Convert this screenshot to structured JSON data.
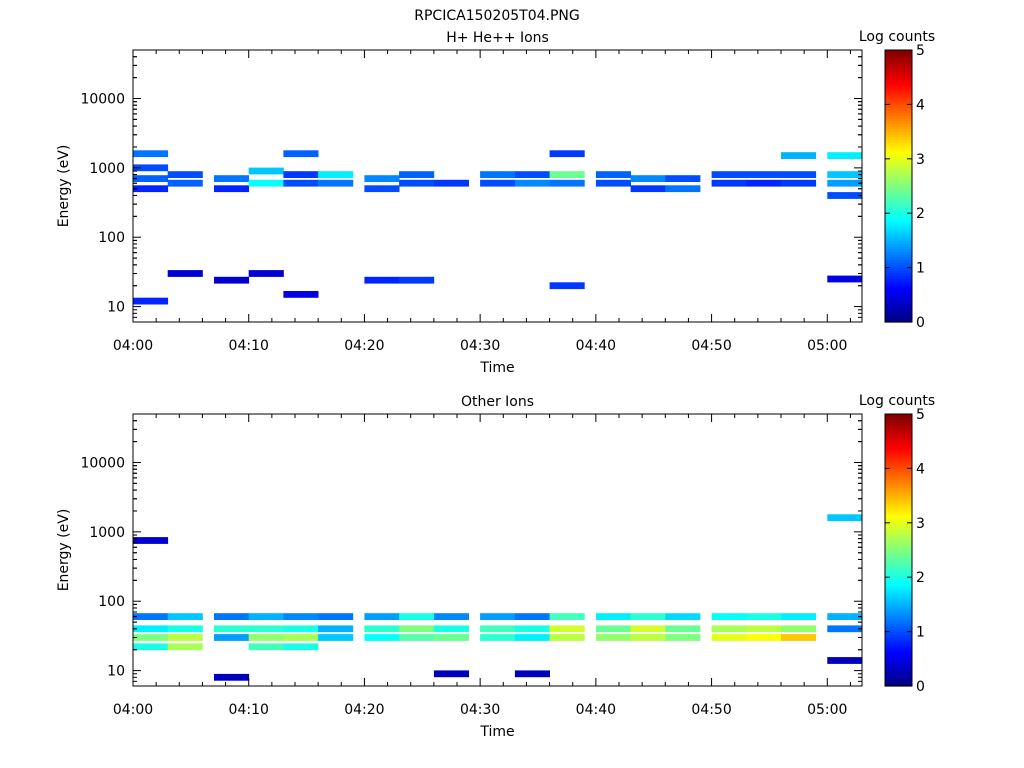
{
  "figure_title": "RPCICA150205T04.PNG",
  "colors": {
    "colormap": [
      "#00007f",
      "#0000ff",
      "#007fff",
      "#00ffff",
      "#7fff7f",
      "#ffff00",
      "#ff7f00",
      "#ff0000",
      "#7f0000"
    ],
    "axes": "#000000",
    "background": "#ffffff"
  },
  "chart_data": [
    {
      "type": "heatmap",
      "title": "H+ He++ Ions",
      "xlabel": "Time",
      "ylabel": "Energy (eV)",
      "yscale": "log",
      "xlim": [
        "04:00",
        "05:03"
      ],
      "ylim": [
        6,
        50000
      ],
      "x_ticks": [
        "04:00",
        "04:10",
        "04:20",
        "04:30",
        "04:40",
        "04:50",
        "05:00"
      ],
      "y_ticks": [
        "10",
        "100",
        "1000",
        "10000"
      ],
      "time_bins": [
        "04:00",
        "04:03",
        "04:07",
        "04:10",
        "04:13",
        "04:16",
        "04:20",
        "04:23",
        "04:26",
        "04:30",
        "04:33",
        "04:36",
        "04:40",
        "04:43",
        "04:46",
        "04:50",
        "04:53",
        "04:56",
        "05:00"
      ],
      "colorbar": {
        "label": "Log counts",
        "min": 0,
        "max": 5,
        "ticks": [
          "0",
          "1",
          "2",
          "3",
          "4",
          "5"
        ]
      },
      "cells": [
        {
          "t": 0,
          "e": 1000,
          "v": 1.0
        },
        {
          "t": 0,
          "e": 700,
          "v": 1.1
        },
        {
          "t": 0,
          "e": 500,
          "v": 0.8
        },
        {
          "t": 0,
          "e": 12,
          "v": 0.8
        },
        {
          "t": 0,
          "e": 1600,
          "v": 1.2
        },
        {
          "t": 1,
          "e": 800,
          "v": 1.0
        },
        {
          "t": 1,
          "e": 600,
          "v": 1.1
        },
        {
          "t": 1,
          "e": 30,
          "v": 0.4
        },
        {
          "t": 2,
          "e": 700,
          "v": 1.2
        },
        {
          "t": 2,
          "e": 500,
          "v": 0.8
        },
        {
          "t": 2,
          "e": 24,
          "v": 0.4
        },
        {
          "t": 3,
          "e": 900,
          "v": 1.6
        },
        {
          "t": 3,
          "e": 600,
          "v": 1.9
        },
        {
          "t": 3,
          "e": 30,
          "v": 0.4
        },
        {
          "t": 4,
          "e": 800,
          "v": 0.9
        },
        {
          "t": 4,
          "e": 600,
          "v": 1.0
        },
        {
          "t": 4,
          "e": 1600,
          "v": 1.1
        },
        {
          "t": 4,
          "e": 15,
          "v": 0.5
        },
        {
          "t": 5,
          "e": 800,
          "v": 1.8
        },
        {
          "t": 5,
          "e": 600,
          "v": 1.2
        },
        {
          "t": 6,
          "e": 700,
          "v": 1.3
        },
        {
          "t": 6,
          "e": 500,
          "v": 1.0
        },
        {
          "t": 6,
          "e": 24,
          "v": 0.8
        },
        {
          "t": 7,
          "e": 800,
          "v": 1.1
        },
        {
          "t": 7,
          "e": 600,
          "v": 1.0
        },
        {
          "t": 7,
          "e": 24,
          "v": 0.9
        },
        {
          "t": 8,
          "e": 600,
          "v": 0.9
        },
        {
          "t": 9,
          "e": 800,
          "v": 1.2
        },
        {
          "t": 9,
          "e": 600,
          "v": 1.0
        },
        {
          "t": 10,
          "e": 800,
          "v": 1.0
        },
        {
          "t": 10,
          "e": 600,
          "v": 1.3
        },
        {
          "t": 11,
          "e": 800,
          "v": 2.4
        },
        {
          "t": 11,
          "e": 600,
          "v": 1.2
        },
        {
          "t": 11,
          "e": 20,
          "v": 0.9
        },
        {
          "t": 11,
          "e": 1600,
          "v": 0.9
        },
        {
          "t": 12,
          "e": 800,
          "v": 1.1
        },
        {
          "t": 12,
          "e": 600,
          "v": 1.0
        },
        {
          "t": 13,
          "e": 700,
          "v": 1.3
        },
        {
          "t": 13,
          "e": 500,
          "v": 0.9
        },
        {
          "t": 14,
          "e": 700,
          "v": 1.0
        },
        {
          "t": 14,
          "e": 500,
          "v": 1.2
        },
        {
          "t": 15,
          "e": 800,
          "v": 1.0
        },
        {
          "t": 15,
          "e": 600,
          "v": 0.9
        },
        {
          "t": 16,
          "e": 800,
          "v": 1.0
        },
        {
          "t": 16,
          "e": 600,
          "v": 0.8
        },
        {
          "t": 17,
          "e": 1500,
          "v": 1.5
        },
        {
          "t": 17,
          "e": 800,
          "v": 1.0
        },
        {
          "t": 17,
          "e": 600,
          "v": 0.9
        },
        {
          "t": 18,
          "e": 1500,
          "v": 1.8
        },
        {
          "t": 18,
          "e": 800,
          "v": 1.6
        },
        {
          "t": 18,
          "e": 600,
          "v": 1.4
        },
        {
          "t": 18,
          "e": 400,
          "v": 1.0
        },
        {
          "t": 18,
          "e": 25,
          "v": 0.5
        }
      ]
    },
    {
      "type": "heatmap",
      "title": "Other Ions",
      "xlabel": "Time",
      "ylabel": "Energy (eV)",
      "yscale": "log",
      "xlim": [
        "04:00",
        "05:03"
      ],
      "ylim": [
        6,
        50000
      ],
      "x_ticks": [
        "04:00",
        "04:10",
        "04:20",
        "04:30",
        "04:40",
        "04:50",
        "05:00"
      ],
      "y_ticks": [
        "10",
        "100",
        "1000",
        "10000"
      ],
      "time_bins": [
        "04:00",
        "04:03",
        "04:07",
        "04:10",
        "04:13",
        "04:16",
        "04:20",
        "04:23",
        "04:26",
        "04:30",
        "04:33",
        "04:36",
        "04:40",
        "04:43",
        "04:46",
        "04:50",
        "04:53",
        "04:56",
        "05:00"
      ],
      "colorbar": {
        "label": "Log counts",
        "min": 0,
        "max": 5,
        "ticks": [
          "0",
          "1",
          "2",
          "3",
          "4",
          "5"
        ]
      },
      "cells": [
        {
          "t": 0,
          "e": 750,
          "v": 0.4
        },
        {
          "t": 0,
          "e": 60,
          "v": 1.2
        },
        {
          "t": 0,
          "e": 40,
          "v": 1.8
        },
        {
          "t": 0,
          "e": 30,
          "v": 2.5
        },
        {
          "t": 0,
          "e": 22,
          "v": 2.0
        },
        {
          "t": 1,
          "e": 60,
          "v": 1.6
        },
        {
          "t": 1,
          "e": 40,
          "v": 2.0
        },
        {
          "t": 1,
          "e": 30,
          "v": 2.8
        },
        {
          "t": 1,
          "e": 22,
          "v": 2.7
        },
        {
          "t": 2,
          "e": 60,
          "v": 1.2
        },
        {
          "t": 2,
          "e": 40,
          "v": 2.1
        },
        {
          "t": 2,
          "e": 30,
          "v": 1.4
        },
        {
          "t": 2,
          "e": 8,
          "v": 0.3
        },
        {
          "t": 3,
          "e": 60,
          "v": 1.5
        },
        {
          "t": 3,
          "e": 40,
          "v": 2.1
        },
        {
          "t": 3,
          "e": 30,
          "v": 2.6
        },
        {
          "t": 3,
          "e": 22,
          "v": 2.2
        },
        {
          "t": 4,
          "e": 60,
          "v": 1.3
        },
        {
          "t": 4,
          "e": 40,
          "v": 2.0
        },
        {
          "t": 4,
          "e": 30,
          "v": 2.7
        },
        {
          "t": 4,
          "e": 22,
          "v": 2.0
        },
        {
          "t": 5,
          "e": 60,
          "v": 1.2
        },
        {
          "t": 5,
          "e": 40,
          "v": 1.5
        },
        {
          "t": 5,
          "e": 30,
          "v": 1.6
        },
        {
          "t": 6,
          "e": 60,
          "v": 1.4
        },
        {
          "t": 6,
          "e": 40,
          "v": 2.1
        },
        {
          "t": 6,
          "e": 30,
          "v": 1.9
        },
        {
          "t": 7,
          "e": 60,
          "v": 2.0
        },
        {
          "t": 7,
          "e": 40,
          "v": 2.5
        },
        {
          "t": 7,
          "e": 30,
          "v": 2.3
        },
        {
          "t": 8,
          "e": 60,
          "v": 1.3
        },
        {
          "t": 8,
          "e": 40,
          "v": 2.0
        },
        {
          "t": 8,
          "e": 30,
          "v": 2.4
        },
        {
          "t": 8,
          "e": 9,
          "v": 0.3
        },
        {
          "t": 9,
          "e": 60,
          "v": 1.4
        },
        {
          "t": 9,
          "e": 40,
          "v": 2.2
        },
        {
          "t": 9,
          "e": 30,
          "v": 2.1
        },
        {
          "t": 10,
          "e": 60,
          "v": 1.2
        },
        {
          "t": 10,
          "e": 40,
          "v": 2.0
        },
        {
          "t": 10,
          "e": 30,
          "v": 1.8
        },
        {
          "t": 10,
          "e": 9,
          "v": 0.3
        },
        {
          "t": 11,
          "e": 60,
          "v": 2.2
        },
        {
          "t": 11,
          "e": 40,
          "v": 2.9
        },
        {
          "t": 11,
          "e": 30,
          "v": 2.8
        },
        {
          "t": 12,
          "e": 60,
          "v": 1.8
        },
        {
          "t": 12,
          "e": 40,
          "v": 2.4
        },
        {
          "t": 12,
          "e": 30,
          "v": 2.6
        },
        {
          "t": 13,
          "e": 60,
          "v": 2.1
        },
        {
          "t": 13,
          "e": 40,
          "v": 2.9
        },
        {
          "t": 13,
          "e": 30,
          "v": 2.8
        },
        {
          "t": 14,
          "e": 60,
          "v": 1.7
        },
        {
          "t": 14,
          "e": 40,
          "v": 2.4
        },
        {
          "t": 14,
          "e": 30,
          "v": 2.5
        },
        {
          "t": 15,
          "e": 60,
          "v": 1.9
        },
        {
          "t": 15,
          "e": 40,
          "v": 2.7
        },
        {
          "t": 15,
          "e": 30,
          "v": 3.0
        },
        {
          "t": 16,
          "e": 60,
          "v": 2.0
        },
        {
          "t": 16,
          "e": 40,
          "v": 2.8
        },
        {
          "t": 16,
          "e": 30,
          "v": 3.1
        },
        {
          "t": 17,
          "e": 60,
          "v": 1.8
        },
        {
          "t": 17,
          "e": 40,
          "v": 2.6
        },
        {
          "t": 17,
          "e": 30,
          "v": 3.4
        },
        {
          "t": 18,
          "e": 1600,
          "v": 1.6
        },
        {
          "t": 18,
          "e": 60,
          "v": 1.5
        },
        {
          "t": 18,
          "e": 40,
          "v": 1.2
        },
        {
          "t": 18,
          "e": 14,
          "v": 0.3
        }
      ]
    }
  ]
}
